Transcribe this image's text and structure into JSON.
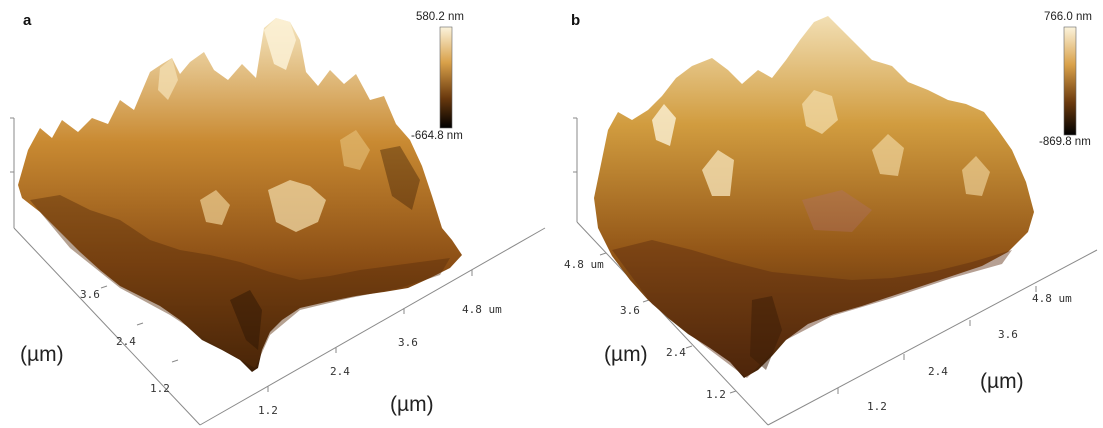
{
  "panels": [
    {
      "letter": "a",
      "colorbar": {
        "max_label": "580.2 nm",
        "min_label": "-664.8 nm"
      },
      "depth_ticks": [
        "3.6",
        "2.4",
        "1.2"
      ],
      "width_ticks": [
        "1.2",
        "2.4",
        "3.6",
        "4.8 um"
      ],
      "unit_left": "(µm)",
      "unit_bottom": "(µm)"
    },
    {
      "letter": "b",
      "colorbar": {
        "max_label": "766.0 nm",
        "min_label": "-869.8 nm"
      },
      "depth_ticks": [
        "4.8 um",
        "3.6",
        "2.4",
        "1.2"
      ],
      "width_ticks": [
        "1.2",
        "2.4",
        "3.6",
        "4.8 um"
      ],
      "unit_left": "(µm)",
      "unit_bottom": "(µm)"
    }
  ],
  "colors": {
    "surface_dark": "#3a1d06",
    "surface_mid": "#a8661d",
    "surface_light": "#e8c074",
    "surface_highlight": "#fbf3dc",
    "axis": "#888888"
  }
}
